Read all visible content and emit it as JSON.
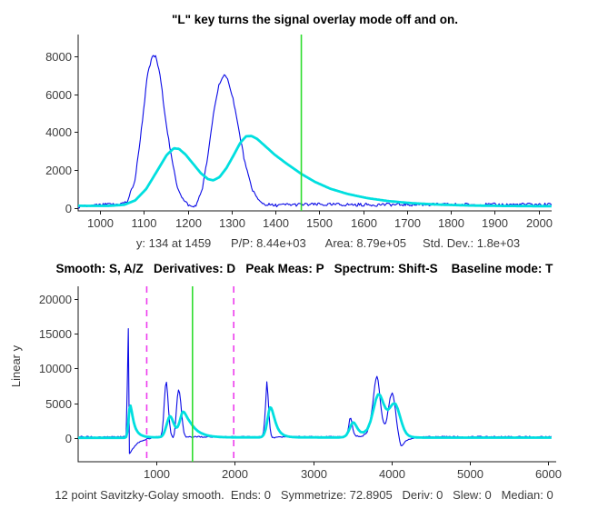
{
  "figure": {
    "background": "#ffffff"
  },
  "colors": {
    "raw_signal": "#0a0ae6",
    "smoothed_signal": "#00dfdf",
    "cursor_green": "#2edd2e",
    "marker_magenta": "#ee3cee",
    "axis": "#1a1a1a",
    "tick_text": "#3c3c3c"
  },
  "chart_data": {
    "type": "line",
    "signals": {
      "raw": {
        "name": "raw-noisy-signal",
        "color": "#0a0ae6",
        "width": 1.1,
        "noise_amp": 85,
        "points": [
          [
            0,
            180
          ],
          [
            610,
            180
          ],
          [
            620,
            1200
          ],
          [
            628,
            9000
          ],
          [
            633,
            18500
          ],
          [
            636,
            21300
          ],
          [
            640,
            16000
          ],
          [
            645,
            5000
          ],
          [
            649,
            -1000
          ],
          [
            653,
            -2300
          ],
          [
            662,
            -2150
          ],
          [
            680,
            -1800
          ],
          [
            705,
            -1400
          ],
          [
            740,
            -950
          ],
          [
            780,
            -600
          ],
          [
            830,
            -330
          ],
          [
            890,
            -120
          ],
          [
            950,
            60
          ],
          [
            1010,
            170
          ],
          [
            1045,
            200
          ],
          [
            1062,
            330
          ],
          [
            1080,
            1500
          ],
          [
            1095,
            4300
          ],
          [
            1108,
            7000
          ],
          [
            1120,
            8050
          ],
          [
            1128,
            7950
          ],
          [
            1138,
            6800
          ],
          [
            1150,
            4600
          ],
          [
            1163,
            2600
          ],
          [
            1176,
            1150
          ],
          [
            1190,
            420
          ],
          [
            1203,
            130
          ],
          [
            1213,
            40
          ],
          [
            1222,
            260
          ],
          [
            1234,
            1100
          ],
          [
            1247,
            2900
          ],
          [
            1260,
            5200
          ],
          [
            1272,
            6600
          ],
          [
            1283,
            6980
          ],
          [
            1293,
            6700
          ],
          [
            1305,
            5600
          ],
          [
            1318,
            3900
          ],
          [
            1332,
            2200
          ],
          [
            1346,
            1050
          ],
          [
            1360,
            430
          ],
          [
            1375,
            200
          ],
          [
            1395,
            140
          ],
          [
            1430,
            170
          ],
          [
            1500,
            180
          ],
          [
            2000,
            180
          ],
          [
            2320,
            180
          ],
          [
            2350,
            300
          ],
          [
            2372,
            1300
          ],
          [
            2390,
            4300
          ],
          [
            2402,
            7500
          ],
          [
            2409,
            8150
          ],
          [
            2418,
            7000
          ],
          [
            2430,
            4400
          ],
          [
            2443,
            2100
          ],
          [
            2456,
            800
          ],
          [
            2470,
            250
          ],
          [
            2484,
            60
          ],
          [
            2500,
            80
          ],
          [
            2530,
            150
          ],
          [
            2580,
            180
          ],
          [
            3380,
            180
          ],
          [
            3415,
            300
          ],
          [
            3440,
            900
          ],
          [
            3460,
            2300
          ],
          [
            3472,
            3150
          ],
          [
            3486,
            2700
          ],
          [
            3502,
            1500
          ],
          [
            3520,
            650
          ],
          [
            3545,
            300
          ],
          [
            3585,
            230
          ],
          [
            3630,
            300
          ],
          [
            3680,
            700
          ],
          [
            3720,
            1900
          ],
          [
            3755,
            4600
          ],
          [
            3785,
            7600
          ],
          [
            3805,
            8800
          ],
          [
            3815,
            8900
          ],
          [
            3828,
            8300
          ],
          [
            3845,
            6600
          ],
          [
            3862,
            4600
          ],
          [
            3880,
            3000
          ],
          [
            3900,
            2100
          ],
          [
            3918,
            2000
          ],
          [
            3936,
            2600
          ],
          [
            3958,
            4200
          ],
          [
            3980,
            5700
          ],
          [
            4000,
            6450
          ],
          [
            4012,
            6500
          ],
          [
            4026,
            5900
          ],
          [
            4042,
            4600
          ],
          [
            4060,
            2900
          ],
          [
            4078,
            1300
          ],
          [
            4094,
            200
          ],
          [
            4108,
            -700
          ],
          [
            4120,
            -1100
          ],
          [
            4135,
            -1000
          ],
          [
            4160,
            -680
          ],
          [
            4195,
            -350
          ],
          [
            4235,
            -130
          ],
          [
            4280,
            -20
          ],
          [
            4340,
            80
          ],
          [
            4420,
            150
          ],
          [
            4500,
            180
          ],
          [
            6050,
            180
          ]
        ]
      },
      "smoothed": {
        "name": "smoothed-overlay-signal",
        "color": "#00dfdf",
        "width": 2.8,
        "noise_amp": 0,
        "points": [
          [
            0,
            40
          ],
          [
            595,
            40
          ],
          [
            612,
            150
          ],
          [
            628,
            900
          ],
          [
            642,
            2600
          ],
          [
            655,
            4300
          ],
          [
            663,
            4780
          ],
          [
            672,
            4550
          ],
          [
            684,
            3800
          ],
          [
            698,
            2900
          ],
          [
            715,
            2000
          ],
          [
            735,
            1350
          ],
          [
            760,
            850
          ],
          [
            790,
            520
          ],
          [
            825,
            320
          ],
          [
            865,
            200
          ],
          [
            910,
            140
          ],
          [
            960,
            115
          ],
          [
            1020,
            115
          ],
          [
            1055,
            170
          ],
          [
            1080,
            400
          ],
          [
            1105,
            1000
          ],
          [
            1130,
            1950
          ],
          [
            1152,
            2800
          ],
          [
            1168,
            3150
          ],
          [
            1180,
            3120
          ],
          [
            1195,
            2820
          ],
          [
            1212,
            2340
          ],
          [
            1230,
            1830
          ],
          [
            1246,
            1530
          ],
          [
            1258,
            1460
          ],
          [
            1272,
            1620
          ],
          [
            1288,
            2100
          ],
          [
            1305,
            2800
          ],
          [
            1320,
            3450
          ],
          [
            1333,
            3780
          ],
          [
            1345,
            3800
          ],
          [
            1358,
            3650
          ],
          [
            1375,
            3300
          ],
          [
            1398,
            2820
          ],
          [
            1425,
            2350
          ],
          [
            1459,
            1800
          ],
          [
            1490,
            1380
          ],
          [
            1525,
            1020
          ],
          [
            1565,
            740
          ],
          [
            1610,
            520
          ],
          [
            1660,
            360
          ],
          [
            1715,
            250
          ],
          [
            1775,
            180
          ],
          [
            1840,
            135
          ],
          [
            1920,
            110
          ],
          [
            2000,
            100
          ],
          [
            2300,
            95
          ],
          [
            2335,
            130
          ],
          [
            2362,
            350
          ],
          [
            2390,
            1100
          ],
          [
            2415,
            2600
          ],
          [
            2435,
            3900
          ],
          [
            2450,
            4420
          ],
          [
            2462,
            4350
          ],
          [
            2478,
            3900
          ],
          [
            2500,
            3000
          ],
          [
            2525,
            2050
          ],
          [
            2552,
            1300
          ],
          [
            2585,
            750
          ],
          [
            2625,
            420
          ],
          [
            2675,
            230
          ],
          [
            2735,
            140
          ],
          [
            2810,
            100
          ],
          [
            3320,
            85
          ],
          [
            3380,
            130
          ],
          [
            3420,
            380
          ],
          [
            3455,
            1100
          ],
          [
            3485,
            1950
          ],
          [
            3505,
            2250
          ],
          [
            3522,
            2200
          ],
          [
            3545,
            1800
          ],
          [
            3572,
            1250
          ],
          [
            3605,
            880
          ],
          [
            3645,
            820
          ],
          [
            3690,
            1250
          ],
          [
            3730,
            2400
          ],
          [
            3768,
            4100
          ],
          [
            3800,
            5600
          ],
          [
            3828,
            6300
          ],
          [
            3850,
            6250
          ],
          [
            3872,
            5700
          ],
          [
            3898,
            4900
          ],
          [
            3925,
            4250
          ],
          [
            3950,
            4050
          ],
          [
            3975,
            4300
          ],
          [
            4002,
            4750
          ],
          [
            4028,
            5000
          ],
          [
            4050,
            4900
          ],
          [
            4075,
            4300
          ],
          [
            4102,
            3300
          ],
          [
            4130,
            2200
          ],
          [
            4158,
            1300
          ],
          [
            4188,
            680
          ],
          [
            4220,
            340
          ],
          [
            4258,
            170
          ],
          [
            4305,
            100
          ],
          [
            4370,
            70
          ],
          [
            4450,
            60
          ],
          [
            6050,
            60
          ]
        ]
      }
    },
    "charts": [
      {
        "id": "top",
        "title": "\"L\" key turns the signal overlay mode off and on.",
        "xlabel": "y: 134 at 1459      P/P: 8.44e+03      Area: 8.79e+05     Std. Dev.: 1.8e+03",
        "xlim": [
          950,
          2030
        ],
        "ylim": [
          -150,
          9150
        ],
        "xticks": [
          1000,
          1100,
          1200,
          1300,
          1400,
          1500,
          1600,
          1700,
          1800,
          1900,
          2000
        ],
        "yticks": [
          0,
          2000,
          4000,
          6000,
          8000
        ],
        "grid": false,
        "legend": "none",
        "cursors": [
          {
            "x": 1459,
            "color": "#2edd2e",
            "style": "solid",
            "name": "cursor-line"
          }
        ],
        "series": [
          "raw",
          "smoothed"
        ]
      },
      {
        "id": "bottom",
        "title": "Smooth: S, A/Z   Derivatives: D   Peak Meas: P   Spectrum: Shift-S    Baseline mode: T",
        "ylabel": "Linear y",
        "xlabel": "12 point Savitzky-Golay smooth.  Ends: 0   Symmetrize: 72.8905   Deriv: 0   Slew: 0   Median: 0",
        "xlim": [
          0,
          6100
        ],
        "ylim": [
          -3400,
          21800
        ],
        "xticks": [
          1000,
          2000,
          3000,
          4000,
          5000,
          6000
        ],
        "yticks": [
          0,
          5000,
          10000,
          15000,
          20000
        ],
        "grid": false,
        "legend": "none",
        "cursors": [
          {
            "x": 875,
            "color": "#ee3cee",
            "style": "dashed",
            "name": "segment-marker-left"
          },
          {
            "x": 1459,
            "color": "#2edd2e",
            "style": "solid",
            "name": "cursor-line"
          },
          {
            "x": 1985,
            "color": "#ee3cee",
            "style": "dashed",
            "name": "segment-marker-right"
          }
        ],
        "series": [
          "raw",
          "smoothed"
        ]
      }
    ]
  }
}
